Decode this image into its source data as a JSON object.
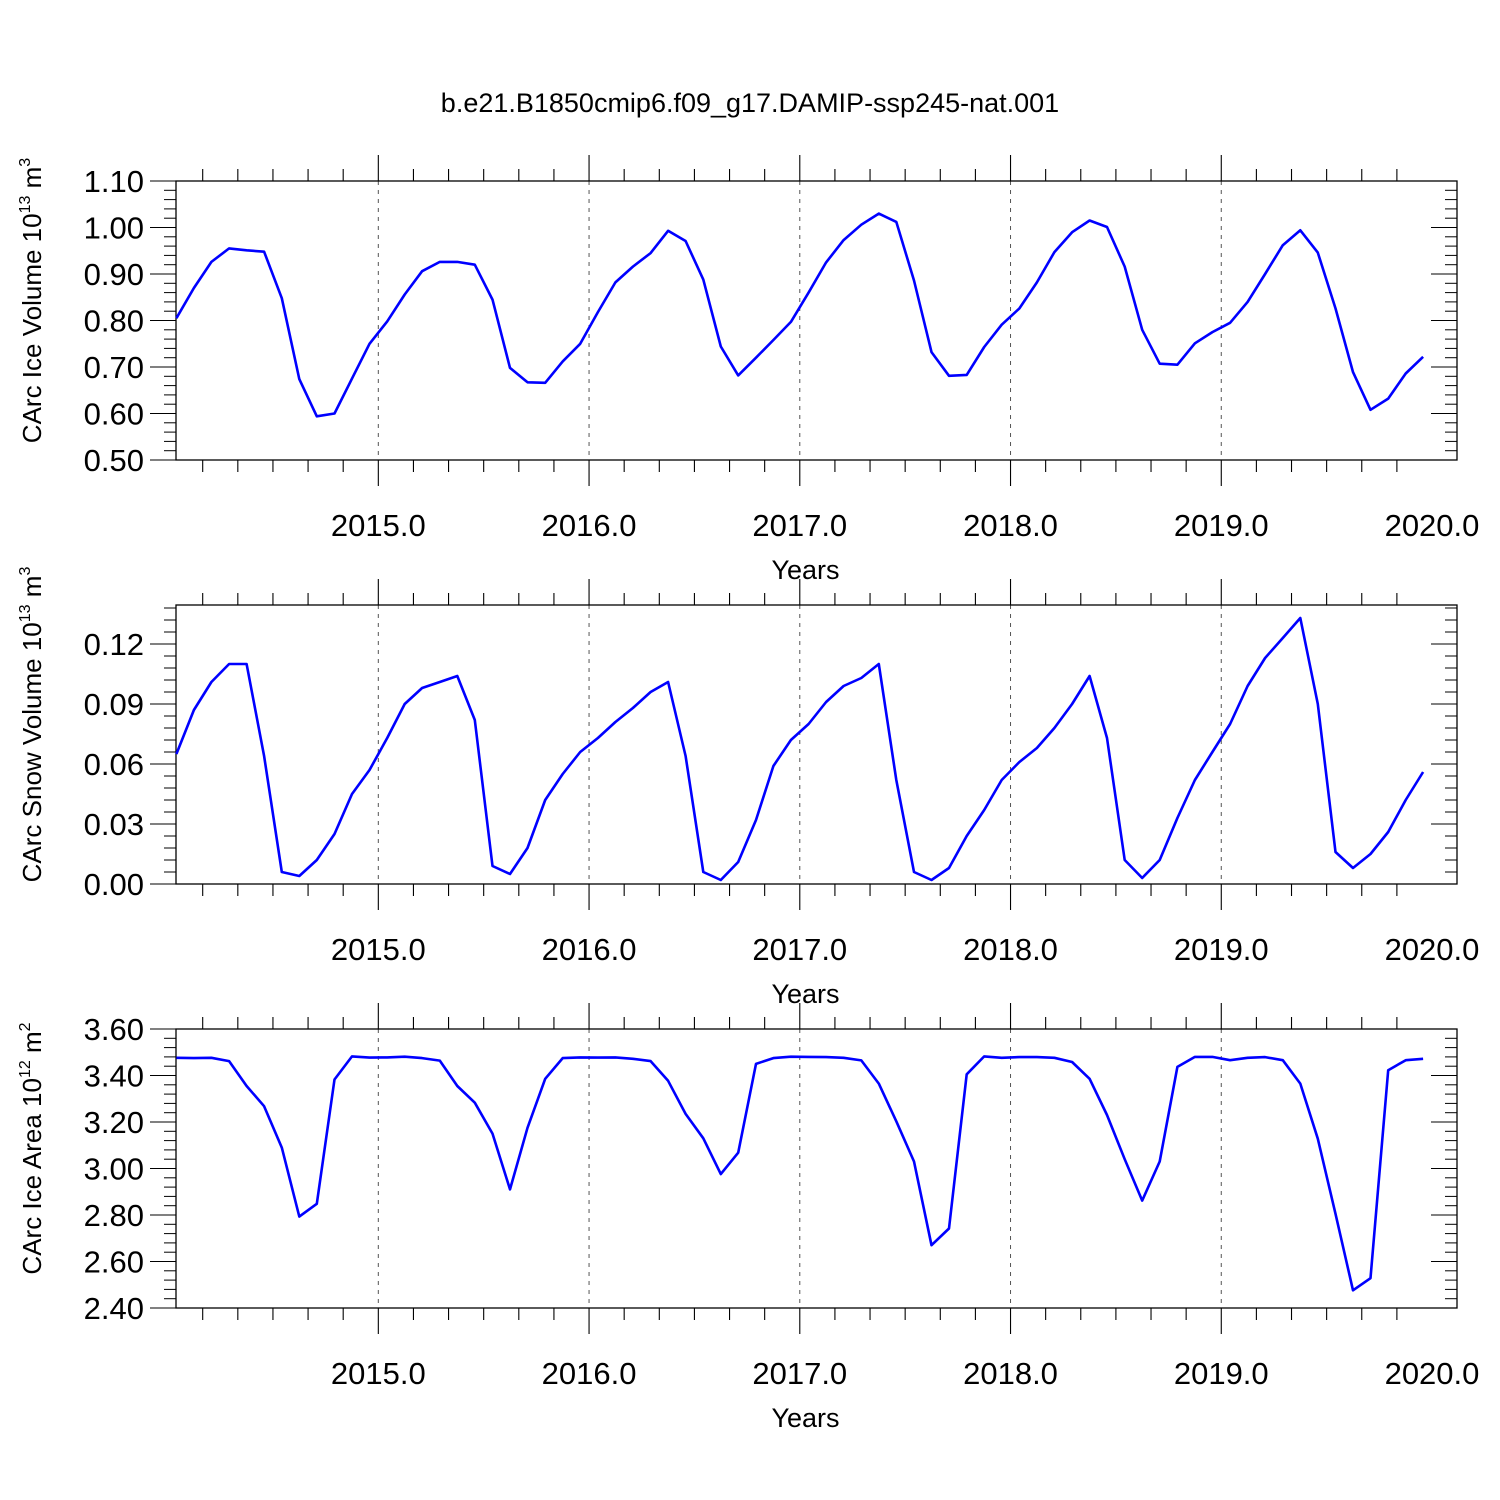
{
  "title": "b.e21.B1850cmip6.f09_g17.DAMIP-ssp245-nat.001",
  "colors": {
    "series": "#0000ff",
    "axis": "#000000",
    "gridline": "#555555"
  },
  "chart_data": [
    {
      "type": "line",
      "ylabel_main": "CArc Ice Volume 10",
      "ylabel_sup": "13",
      "ylabel_unit": "m",
      "ylabel_unit_sup": "3",
      "xlabel": "Years",
      "xlim": [
        2014.04,
        2020.0
      ],
      "ylim": [
        0.5,
        1.1
      ],
      "yticks": [
        "0.50",
        "0.60",
        "0.70",
        "0.80",
        "0.90",
        "1.00",
        "1.10"
      ],
      "yticks_values": [
        0.5,
        0.6,
        0.7,
        0.8,
        0.9,
        1.0,
        1.1
      ],
      "xticks": [
        "2015.0",
        "2016.0",
        "2017.0",
        "2018.0",
        "2019.0",
        "2020.0"
      ],
      "xticks_values": [
        2015,
        2016,
        2017,
        2018,
        2019,
        2020
      ],
      "grid": "vertical dashed at x ticks",
      "series": [
        {
          "x": [
            2014.042,
            2014.125,
            2014.208,
            2014.292,
            2014.375,
            2014.458,
            2014.542,
            2014.625,
            2014.708,
            2014.792,
            2014.875,
            2014.958,
            2015.042,
            2015.125,
            2015.208,
            2015.292,
            2015.375,
            2015.458,
            2015.542,
            2015.625,
            2015.708,
            2015.792,
            2015.875,
            2015.958,
            2016.042,
            2016.125,
            2016.208,
            2016.292,
            2016.375,
            2016.458,
            2016.542,
            2016.625,
            2016.708,
            2016.792,
            2016.875,
            2016.958,
            2017.042,
            2017.125,
            2017.208,
            2017.292,
            2017.375,
            2017.458,
            2017.542,
            2017.625,
            2017.708,
            2017.792,
            2017.875,
            2017.958,
            2018.042,
            2018.125,
            2018.208,
            2018.292,
            2018.375,
            2018.458,
            2018.542,
            2018.625,
            2018.708,
            2018.792,
            2018.875,
            2018.958,
            2019.042,
            2019.125,
            2019.208,
            2019.292,
            2019.375,
            2019.458,
            2019.542,
            2019.625,
            2019.708,
            2019.792,
            2019.875,
            2019.958
          ],
          "values": [
            0.805,
            0.87,
            0.926,
            0.955,
            0.951,
            0.948,
            0.848,
            0.674,
            0.594,
            0.6,
            0.675,
            0.75,
            0.798,
            0.856,
            0.906,
            0.926,
            0.926,
            0.92,
            0.845,
            0.698,
            0.667,
            0.666,
            0.712,
            0.75,
            0.818,
            0.882,
            0.916,
            0.945,
            0.993,
            0.971,
            0.888,
            0.744,
            0.682,
            0.72,
            0.758,
            0.797,
            0.86,
            0.925,
            0.973,
            1.006,
            1.03,
            1.012,
            0.886,
            0.732,
            0.681,
            0.683,
            0.743,
            0.791,
            0.826,
            0.882,
            0.947,
            0.99,
            1.015,
            1.001,
            0.916,
            0.78,
            0.707,
            0.705,
            0.751,
            0.775,
            0.795,
            0.84,
            0.9,
            0.962,
            0.994,
            0.946,
            0.826,
            0.689,
            0.608,
            0.632,
            0.686,
            0.722
          ]
        }
      ]
    },
    {
      "type": "line",
      "ylabel_main": "CArc Snow Volume 10",
      "ylabel_sup": "13",
      "ylabel_unit": "m",
      "ylabel_unit_sup": "3",
      "xlabel": "Years",
      "xlim": [
        2014.04,
        2020.0
      ],
      "ylim": [
        0.0,
        0.1395
      ],
      "yticks": [
        "0.00",
        "0.03",
        "0.06",
        "0.09",
        "0.12"
      ],
      "yticks_values": [
        0.0,
        0.03,
        0.06,
        0.09,
        0.12
      ],
      "xticks": [
        "2015.0",
        "2016.0",
        "2017.0",
        "2018.0",
        "2019.0",
        "2020.0"
      ],
      "xticks_values": [
        2015,
        2016,
        2017,
        2018,
        2019,
        2020
      ],
      "grid": "vertical dashed at x ticks",
      "series": [
        {
          "x": [
            2014.042,
            2014.125,
            2014.208,
            2014.292,
            2014.375,
            2014.458,
            2014.542,
            2014.625,
            2014.708,
            2014.792,
            2014.875,
            2014.958,
            2015.042,
            2015.125,
            2015.208,
            2015.292,
            2015.375,
            2015.458,
            2015.542,
            2015.625,
            2015.708,
            2015.792,
            2015.875,
            2015.958,
            2016.042,
            2016.125,
            2016.208,
            2016.292,
            2016.375,
            2016.458,
            2016.542,
            2016.625,
            2016.708,
            2016.792,
            2016.875,
            2016.958,
            2017.042,
            2017.125,
            2017.208,
            2017.292,
            2017.375,
            2017.458,
            2017.542,
            2017.625,
            2017.708,
            2017.792,
            2017.875,
            2017.958,
            2018.042,
            2018.125,
            2018.208,
            2018.292,
            2018.375,
            2018.458,
            2018.542,
            2018.625,
            2018.708,
            2018.792,
            2018.875,
            2018.958,
            2019.042,
            2019.125,
            2019.208,
            2019.292,
            2019.375,
            2019.458,
            2019.542,
            2019.625,
            2019.708,
            2019.792,
            2019.875,
            2019.958
          ],
          "values": [
            0.065,
            0.087,
            0.101,
            0.11,
            0.11,
            0.064,
            0.006,
            0.004,
            0.012,
            0.025,
            0.045,
            0.057,
            0.073,
            0.09,
            0.098,
            0.101,
            0.104,
            0.082,
            0.009,
            0.005,
            0.018,
            0.042,
            0.055,
            0.066,
            0.073,
            0.081,
            0.088,
            0.096,
            0.101,
            0.064,
            0.006,
            0.002,
            0.011,
            0.032,
            0.059,
            0.072,
            0.08,
            0.091,
            0.099,
            0.103,
            0.11,
            0.052,
            0.006,
            0.002,
            0.008,
            0.024,
            0.037,
            0.052,
            0.061,
            0.068,
            0.078,
            0.09,
            0.104,
            0.073,
            0.012,
            0.003,
            0.012,
            0.033,
            0.052,
            0.066,
            0.08,
            0.099,
            0.113,
            0.123,
            0.133,
            0.09,
            0.016,
            0.008,
            0.015,
            0.026,
            0.042,
            0.056
          ]
        }
      ]
    },
    {
      "type": "line",
      "ylabel_main": "CArc Ice Area 10",
      "ylabel_sup": "12",
      "ylabel_unit": "m",
      "ylabel_unit_sup": "2",
      "xlabel": "Years",
      "xlim": [
        2014.04,
        2020.0
      ],
      "ylim": [
        2.4,
        3.6
      ],
      "yticks": [
        "2.40",
        "2.60",
        "2.80",
        "3.00",
        "3.20",
        "3.40",
        "3.60"
      ],
      "yticks_values": [
        2.4,
        2.6,
        2.8,
        3.0,
        3.2,
        3.4,
        3.6
      ],
      "xticks": [
        "2015.0",
        "2016.0",
        "2017.0",
        "2018.0",
        "2019.0",
        "2020.0"
      ],
      "xticks_values": [
        2015,
        2016,
        2017,
        2018,
        2019,
        2020
      ],
      "grid": "vertical dashed at x ticks",
      "series": [
        {
          "x": [
            2014.042,
            2014.125,
            2014.208,
            2014.292,
            2014.375,
            2014.458,
            2014.542,
            2014.625,
            2014.708,
            2014.792,
            2014.875,
            2014.958,
            2015.042,
            2015.125,
            2015.208,
            2015.292,
            2015.375,
            2015.458,
            2015.542,
            2015.625,
            2015.708,
            2015.792,
            2015.875,
            2015.958,
            2016.042,
            2016.125,
            2016.208,
            2016.292,
            2016.375,
            2016.458,
            2016.542,
            2016.625,
            2016.708,
            2016.792,
            2016.875,
            2016.958,
            2017.042,
            2017.125,
            2017.208,
            2017.292,
            2017.375,
            2017.458,
            2017.542,
            2017.625,
            2017.708,
            2017.792,
            2017.875,
            2017.958,
            2018.042,
            2018.125,
            2018.208,
            2018.292,
            2018.375,
            2018.458,
            2018.542,
            2018.625,
            2018.708,
            2018.792,
            2018.875,
            2018.958,
            2019.042,
            2019.125,
            2019.208,
            2019.292,
            2019.375,
            2019.458,
            2019.542,
            2019.625,
            2019.708,
            2019.792,
            2019.875,
            2019.958
          ],
          "values": [
            3.476,
            3.475,
            3.476,
            3.462,
            3.355,
            3.268,
            3.09,
            2.793,
            2.848,
            3.383,
            3.482,
            3.477,
            3.478,
            3.481,
            3.475,
            3.464,
            3.355,
            3.283,
            3.15,
            2.91,
            3.175,
            3.386,
            3.475,
            3.478,
            3.477,
            3.478,
            3.472,
            3.462,
            3.377,
            3.235,
            3.13,
            2.976,
            3.068,
            3.45,
            3.475,
            3.481,
            3.48,
            3.479,
            3.476,
            3.465,
            3.365,
            3.203,
            3.03,
            2.67,
            2.742,
            3.405,
            3.482,
            3.476,
            3.479,
            3.479,
            3.476,
            3.458,
            3.386,
            3.23,
            3.04,
            2.862,
            3.03,
            3.437,
            3.48,
            3.48,
            3.466,
            3.476,
            3.479,
            3.466,
            3.365,
            3.128,
            2.805,
            2.476,
            2.528,
            3.423,
            3.466,
            3.472
          ]
        }
      ]
    }
  ]
}
